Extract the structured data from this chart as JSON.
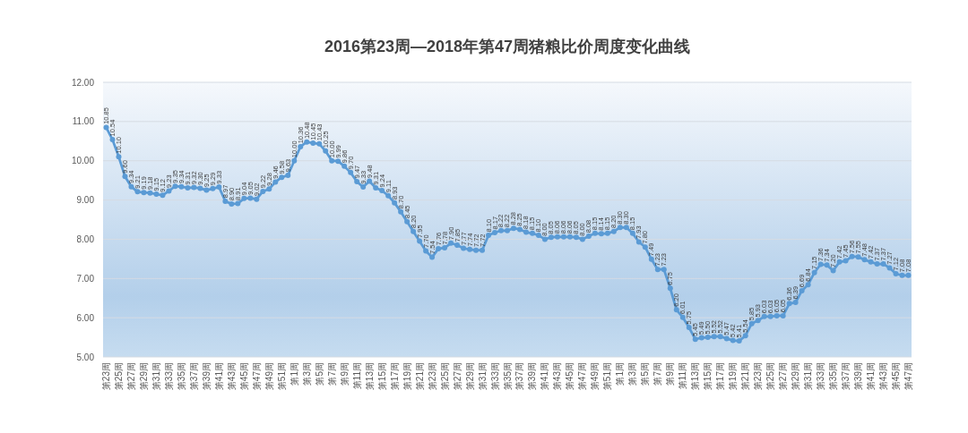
{
  "chart_data": {
    "type": "line",
    "title": "2016第23周—2018年第47周猪粮比价周度变化曲线",
    "categories": [
      "第23周",
      null,
      "第25周",
      null,
      "第27周",
      null,
      "第29周",
      null,
      "第31周",
      null,
      "第33周",
      null,
      "第35周",
      null,
      "第37周",
      null,
      "第39周",
      null,
      "第41周",
      null,
      "第43周",
      null,
      "第45周",
      null,
      "第47周",
      null,
      "第49周",
      null,
      "第51周",
      null,
      "第1周",
      null,
      "第3周",
      null,
      "第5周",
      null,
      "第7周",
      null,
      "第9周",
      null,
      "第11周",
      null,
      "第13周",
      null,
      "第15周",
      null,
      "第17周",
      null,
      "第19周",
      null,
      "第21周",
      null,
      "第23周",
      null,
      "第25周",
      null,
      "第27周",
      null,
      "第29周",
      null,
      "第31周",
      null,
      "第33周",
      null,
      "第35周",
      null,
      "第37周",
      null,
      "第39周",
      null,
      "第41周",
      null,
      "第43周",
      null,
      "第45周",
      null,
      "第47周",
      null,
      "第49周",
      null,
      "第51周",
      null,
      "第1周",
      null,
      "第3周",
      null,
      "第5周",
      null,
      "第7周",
      null,
      "第9周",
      null,
      "第11周",
      null,
      "第13周",
      null,
      "第15周",
      null,
      "第17周",
      null,
      "第19周",
      null,
      "第21周",
      null,
      "第23周",
      null,
      "第25周",
      null,
      "第27周",
      null,
      "第29周",
      null,
      "第31周",
      null,
      "第33周",
      null,
      "第35周",
      null,
      "第37周",
      null,
      "第39周",
      null,
      "第41周",
      null,
      "第43周",
      null,
      "第45周",
      null,
      "第47周"
    ],
    "values": [
      10.85,
      10.54,
      10.1,
      9.6,
      9.34,
      9.21,
      9.19,
      9.18,
      9.15,
      9.12,
      9.23,
      9.35,
      9.34,
      9.31,
      9.32,
      9.3,
      9.25,
      9.29,
      9.33,
      8.97,
      8.9,
      8.91,
      9.04,
      9.05,
      9.02,
      9.22,
      9.28,
      9.46,
      9.58,
      9.63,
      10.0,
      10.36,
      10.48,
      10.45,
      10.43,
      10.25,
      10.0,
      9.99,
      9.86,
      9.7,
      9.47,
      9.33,
      9.48,
      9.31,
      9.24,
      9.11,
      8.93,
      8.7,
      8.45,
      8.2,
      7.95,
      7.7,
      7.54,
      7.76,
      7.78,
      7.9,
      7.85,
      7.77,
      7.74,
      7.72,
      7.72,
      8.1,
      8.17,
      8.22,
      8.22,
      8.28,
      8.25,
      8.18,
      8.15,
      8.1,
      8.0,
      8.05,
      8.06,
      8.06,
      8.06,
      8.05,
      8.0,
      8.08,
      8.15,
      8.14,
      8.15,
      8.2,
      8.3,
      8.3,
      8.15,
      7.93,
      7.8,
      7.49,
      7.23,
      7.23,
      6.75,
      6.2,
      6.01,
      5.75,
      5.45,
      5.49,
      5.5,
      5.52,
      5.52,
      5.47,
      5.42,
      5.41,
      5.54,
      5.85,
      5.93,
      6.03,
      6.03,
      6.05,
      6.05,
      6.36,
      6.39,
      6.69,
      6.84,
      7.15,
      7.36,
      7.34,
      7.2,
      7.42,
      7.45,
      7.56,
      7.55,
      7.48,
      7.42,
      7.37,
      7.37,
      7.27,
      7.12,
      7.08,
      7.08
    ],
    "value_labels": [
      "10.85",
      "10.54",
      "10.10",
      "9.60",
      "9.34",
      "9.21",
      "9.19",
      "9.18",
      "9.15",
      "9.12",
      "9.23",
      "9.35",
      "9.34",
      "9.31",
      "9.32",
      "9.30",
      "9.25",
      "9.29",
      "9.33",
      "8.97",
      "8.90",
      "8.91",
      "9.04",
      "9.05",
      "9.02",
      "9.22",
      "9.28",
      "9.46",
      "9.58",
      "9.63",
      "10.00",
      "10.36",
      "10.48",
      "10.45",
      "10.43",
      "10.25",
      "10.00",
      "9.99",
      "9.86",
      "9.70",
      "9.47",
      "9.33",
      "9.48",
      "9.31",
      "9.24",
      "9.11",
      "8.93",
      "8.70",
      "8.45",
      "8.20",
      "7.95",
      "7.70",
      "7.54",
      "7.76",
      "7.78",
      "7.90",
      "7.85",
      "7.77",
      "7.74",
      "7.72",
      "7.72",
      "8.10",
      "8.17",
      "8.22",
      "8.22",
      "8.28",
      "8.25",
      "8.18",
      "8.15",
      "8.10",
      "8.00",
      "8.05",
      "8.06",
      "8.06",
      "8.06",
      "8.05",
      "8.00",
      "8.08",
      "8.15",
      "8.14",
      "8.15",
      "8.20",
      "8.30",
      "8.30",
      "8.15",
      "7.93",
      "7.80",
      "7.49",
      "7.23",
      "7.23",
      "6.75",
      "6.20",
      "6.01",
      "5.75",
      "5.45",
      "5.49",
      "5.50",
      "5.52",
      "5.52",
      "5.47",
      "5.42",
      "5.41",
      "5.54",
      "5.85",
      "5.93",
      "6.03",
      "6.03",
      "6.05",
      "6.05",
      "6.36",
      "6.39",
      "6.69",
      "6.84",
      "7.15",
      "7.36",
      "7.34",
      "7.20",
      "7.42",
      "7.45",
      "7.56",
      "7.55",
      "7.48",
      "7.42",
      "7.37",
      "7.37",
      "7.27",
      "7.12",
      "7.08",
      "7.08"
    ],
    "color": "#5b9bd5",
    "marker": "circle",
    "line_style": "solid",
    "ylim": [
      5,
      12
    ],
    "yticks": [
      {
        "value": 5,
        "label": "5.00"
      },
      {
        "value": 6,
        "label": "6.00"
      },
      {
        "value": 7,
        "label": "7.00"
      },
      {
        "value": 8,
        "label": "8.00"
      },
      {
        "value": 9,
        "label": "9.00"
      },
      {
        "value": 10,
        "label": "10.00"
      },
      {
        "value": 11,
        "label": "11.00"
      },
      {
        "value": 12,
        "label": "12.00"
      }
    ],
    "grid": "y"
  }
}
